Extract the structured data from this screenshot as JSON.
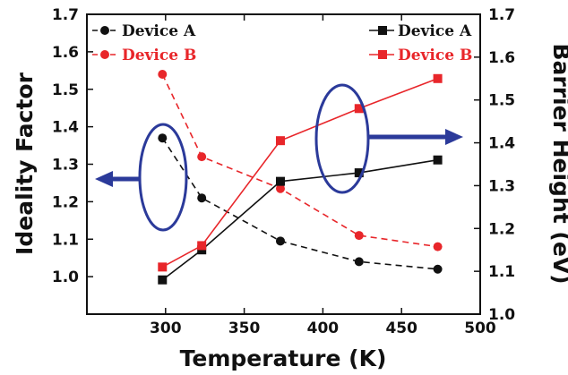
{
  "chart_data": {
    "type": "line",
    "xlabel": "Temperature (K)",
    "ylabel_left": "Ideality Factor",
    "ylabel_right": "Barrier Height (eV)",
    "xlim": [
      250,
      500
    ],
    "ylim_left": [
      0.9,
      1.7
    ],
    "ylim_right": [
      1.0,
      1.7
    ],
    "x_ticks": [
      "300",
      "350",
      "400",
      "450",
      "500"
    ],
    "y_ticks_left": [
      "1.0",
      "1.1",
      "1.2",
      "1.3",
      "1.4",
      "1.5",
      "1.6",
      "1.7"
    ],
    "y_ticks_right": [
      "1.0",
      "1.1",
      "1.2",
      "1.3",
      "1.4",
      "1.5",
      "1.6",
      "1.7"
    ],
    "colors": {
      "device_a": "#111111",
      "device_b": "#e8262a",
      "annotation": "#2b3a9a"
    },
    "legend_left": {
      "placement": "top-left",
      "entries": [
        "Device A",
        "Device B"
      ]
    },
    "legend_right": {
      "placement": "top-right",
      "entries": [
        "Device A",
        "Device B"
      ]
    },
    "series": [
      {
        "name": "Device A",
        "axis": "left",
        "marker": "circle",
        "line": "dashed",
        "color_key": "device_a",
        "x": [
          298,
          323,
          373,
          423,
          473
        ],
        "y": [
          1.37,
          1.21,
          1.095,
          1.04,
          1.02
        ]
      },
      {
        "name": "Device B",
        "axis": "left",
        "marker": "circle",
        "line": "dashed",
        "color_key": "device_b",
        "x": [
          298,
          323,
          373,
          423,
          473
        ],
        "y": [
          1.54,
          1.32,
          1.235,
          1.11,
          1.08
        ]
      },
      {
        "name": "Device A",
        "axis": "right",
        "marker": "square",
        "line": "solid",
        "color_key": "device_a",
        "x": [
          298,
          323,
          373,
          423,
          473
        ],
        "y": [
          1.08,
          1.15,
          1.31,
          1.33,
          1.36
        ]
      },
      {
        "name": "Device B",
        "axis": "right",
        "marker": "square",
        "line": "solid",
        "color_key": "device_b",
        "x": [
          298,
          323,
          373,
          423,
          473
        ],
        "y": [
          1.11,
          1.16,
          1.405,
          1.48,
          1.55
        ]
      }
    ]
  }
}
